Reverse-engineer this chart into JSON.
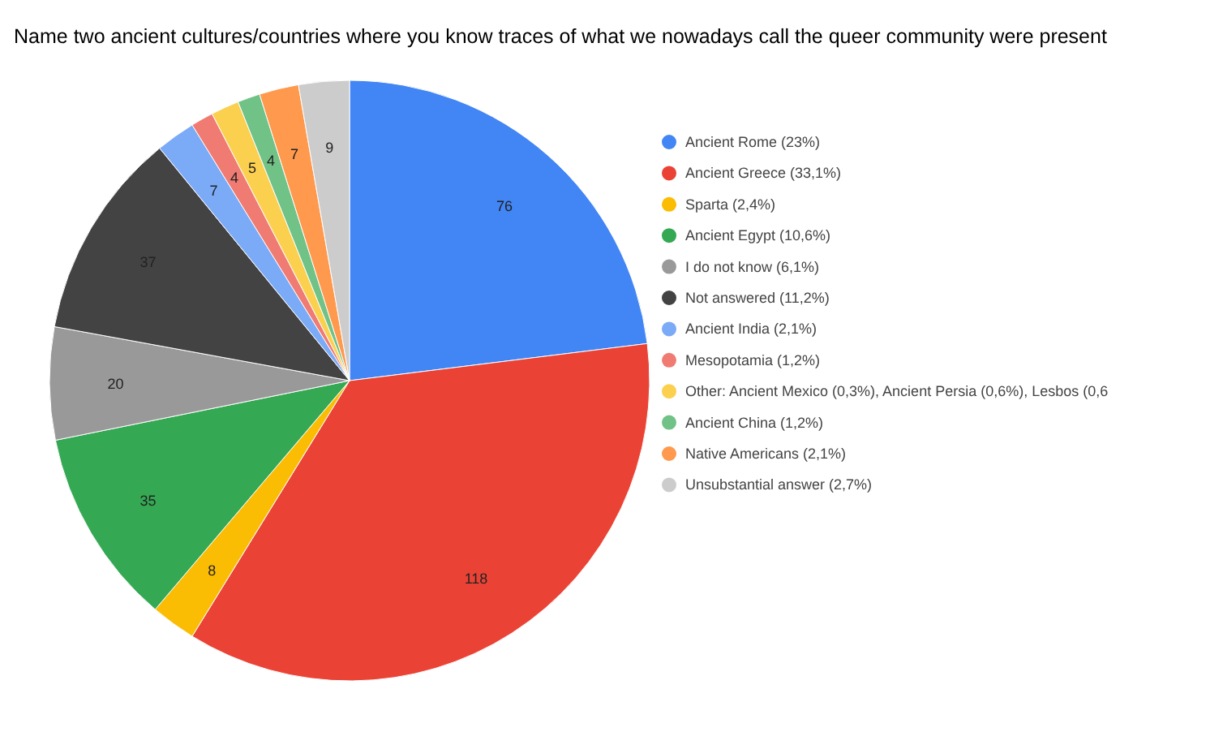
{
  "chart_data": {
    "type": "pie",
    "title": "Name two ancient cultures/countries where you know traces of what we nowadays call the queer community were present",
    "categories": [
      "Ancient Rome (23%)",
      "Ancient Greece (33,1%)",
      "Sparta (2,4%)",
      "Ancient Egypt (10,6%)",
      "I do not know (6,1%)",
      "Not answered (11,2%)",
      "Ancient India (2,1%)",
      "Mesopotamia (1,2%)",
      "Other: Ancient Mexico (0,3%), Ancient Persia (0,6%), Lesbos (0,6",
      "Ancient China (1,2%)",
      "Native Americans (2,1%)",
      "Unsubstantial answer (2,7%)"
    ],
    "values": [
      76,
      118,
      8,
      35,
      20,
      37,
      7,
      4,
      5,
      4,
      7,
      9
    ],
    "colors": [
      "#4285f4",
      "#ea4335",
      "#fbbc04",
      "#34a853",
      "#999999",
      "#434343",
      "#7baaf7",
      "#f07b72",
      "#fcd04f",
      "#71c287",
      "#ff994d",
      "#cccccc"
    ],
    "data_labels": true,
    "legend": "right"
  }
}
